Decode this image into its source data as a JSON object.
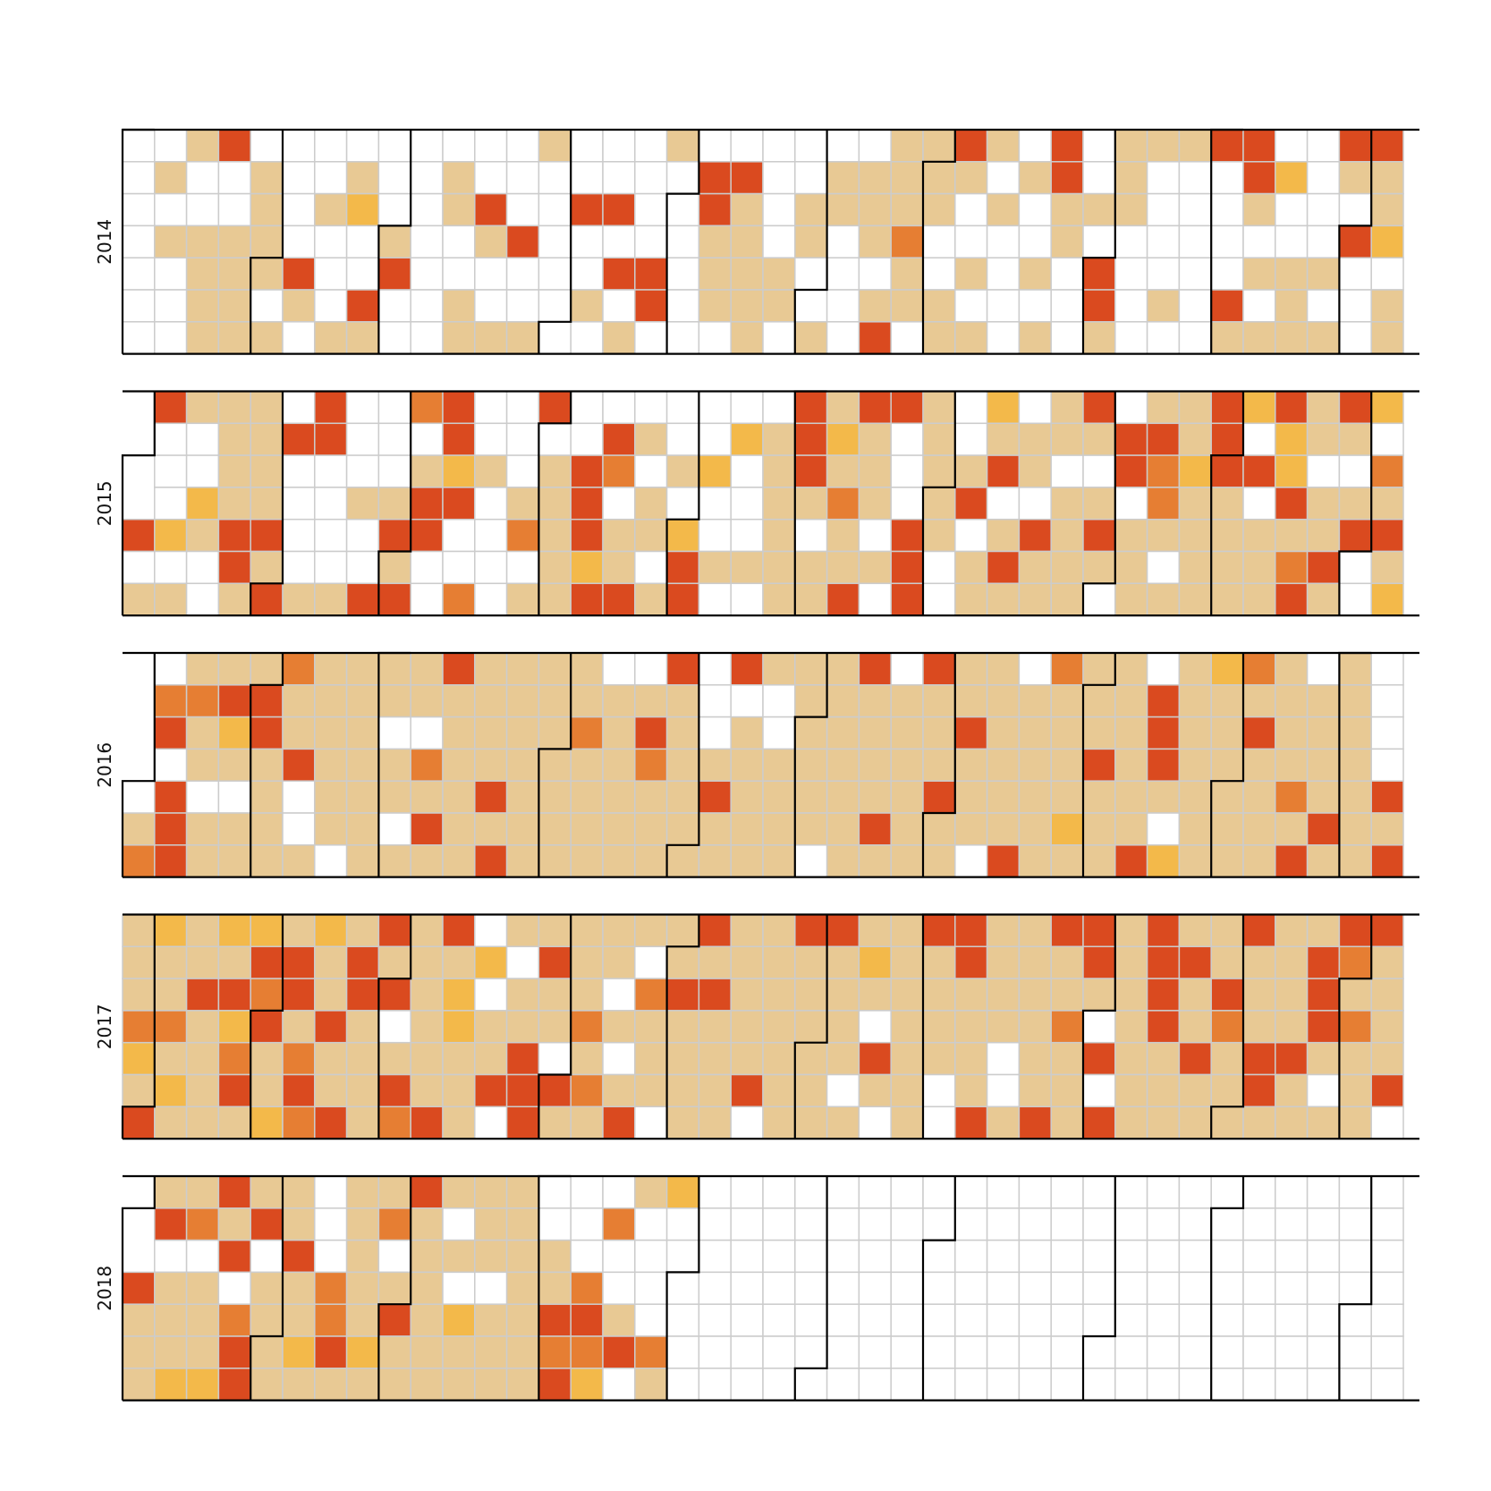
{
  "chart_data": {
    "type": "heatmap",
    "title": "",
    "layout": "calendar",
    "weeks_per_year": 40,
    "days_per_week": 7,
    "week_start": "Sunday",
    "months_outlined": true,
    "empty_color": "#ffffff",
    "missing_color": "#e0e0e0",
    "grid_color": "#cccccc",
    "outline_color": "#000000",
    "level_colors": [
      "#ffffff",
      "#e8c994",
      "#f3b94a",
      "#e67e33",
      "#da4a1f"
    ],
    "levels_note": "",
    "years": [
      {
        "label": "2014",
        "cells": [
          "-000000",
          "0101000",
          "1001111",
          "4001111",
          "0111101",
          "0000410",
          "0010001",
          "0120041",
          "0001400",
          "0000000",
          "0110011",
          "0041001",
          "0004001",
          "1000000",
          "0040010",
          "0040401",
          "0000440",
          "1000000",
          "0441110",
          "0411111",
          "0000110",
          "0011001",
          "0110000",
          "0111014",
          "1113110",
          "1110011",
          "4100101",
          "1010000",
          "0100101",
          "4411000",
          "0010441",
          "1110000",
          "1000010",
          "1000000",
          "4000041",
          "4410101",
          "0200111",
          "0000101",
          "4104000",
          "4112011"
        ]
      },
      {
        "label": "2015",
        "cells": [
          "----401",
          "4000201",
          "1002100",
          "1111441",
          "1111414",
          "0400001",
          "4400001",
          "0001004",
          "0001414",
          "3014400",
          "4424003",
          "0010000",
          "0001301",
          "4011111",
          "0044424",
          "0430114",
          "0101101",
          "0010244",
          "0020010",
          "0200010",
          "0111111",
          "4441011",
          "1213114",
          "4111010",
          "4000444",
          "1111100",
          "0014011",
          "2140141",
          "0110411",
          "1101111",
          "4101410",
          "0440111",
          "1433101",
          "1121111",
          "4441111",
          "2040111",
          "4224134",
          "1101141",
          "4101400",
          "2031412"
        ]
      },
      {
        "label": "2016",
        "cells": [
          "-----13",
          "0340444",
          "1311011",
          "1421011",
          "1441111",
          "3114001",
          "1111110",
          "1111111",
          "1101101",
          "1103141",
          "4111111",
          "1111414",
          "1111111",
          "1111111",
          "1131111",
          "0111111",
          "0143111",
          "4111111",
          "0001411",
          "4011111",
          "1001111",
          "1111110",
          "1111111",
          "4111141",
          "0111111",
          "4111411",
          "1141110",
          "1111114",
          "0111111",
          "3111121",
          "1114111",
          "1111114",
          "0444102",
          "1111111",
          "2111111",
          "3141111",
          "1111314",
          "0111141",
          "1111111",
          "0000414"
        ]
      },
      {
        "label": "2017",
        "cells": [
          "1113214",
          "2113121",
          "1141111",
          "2142341",
          "2434112",
          "1441343",
          "2114114",
          "1441111",
          "4140143",
          "1111114",
          "4122111",
          "0201140",
          "1011444",
          "1411041",
          "1113131",
          "1101014",
          "1031110",
          "1141111",
          "4141111",
          "1111140",
          "1111111",
          "4111111",
          "4111101",
          "1210410",
          "1111111",
          "4111100",
          "4411114",
          "1111001",
          "1111114",
          "4113111",
          "4410404",
          "1111111",
          "4444111",
          "1411411",
          "1143111",
          "4111441",
          "1111411",
          "1444101",
          "4313111",
          "4111140"
        ]
      },
      {
        "label": "2018",
        "cells": [
          "---4111",
          "1401112",
          "1301112",
          "4140344",
          "1401111",
          "1141121",
          "0003341",
          "1111121",
          "1301411",
          "4111111",
          "1010211",
          "1110111",
          "1111111",
          "0011434",
          "0003432",
          "0300140",
          "1000031",
          "2000000",
          "0000000",
          "0000000",
          "0000000",
          "0000000",
          "0000000",
          "0000000",
          "0000000",
          "0000000",
          "0000000",
          "0000000",
          "0000000",
          "0000000",
          "0000000",
          "0000000",
          "0000000",
          "0000000",
          "0000000",
          "0000000",
          "0000000",
          "0000000",
          "0000000",
          "0000000"
        ]
      }
    ]
  }
}
